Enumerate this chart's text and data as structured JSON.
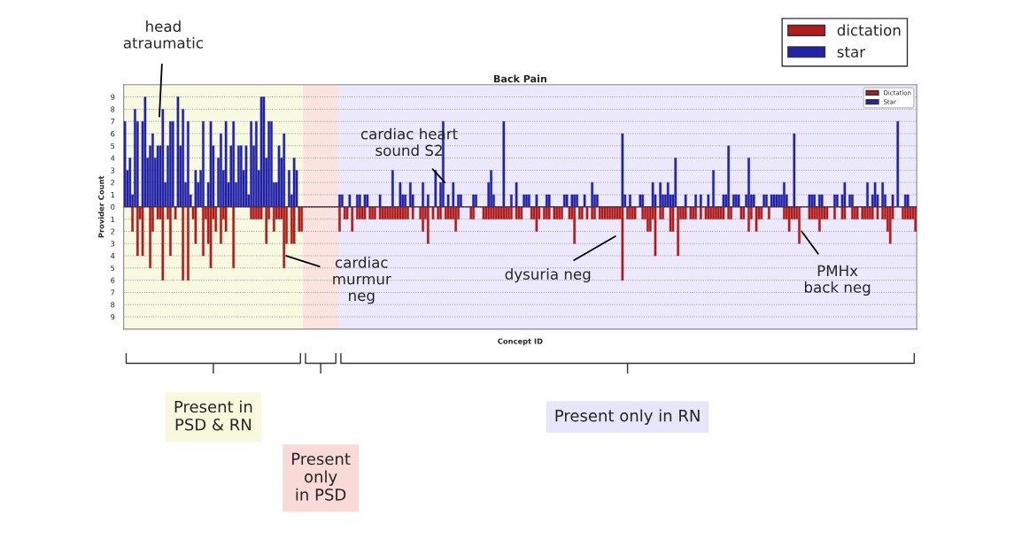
{
  "chart_data": {
    "type": "bar",
    "title": "Back Pain",
    "xlabel": "Concept ID",
    "ylabel": "Provider Count",
    "categories": [
      null,
      null,
      null,
      null,
      null,
      null,
      null,
      null,
      null,
      null,
      null,
      null,
      null,
      null,
      null,
      null,
      null,
      null,
      null,
      null,
      null,
      null,
      null,
      null,
      null,
      null,
      null,
      null,
      null,
      null,
      null,
      null,
      null,
      null,
      null,
      null,
      null,
      null,
      null,
      null,
      null,
      null,
      null,
      null,
      null,
      null,
      null,
      null,
      null,
      null,
      null,
      null,
      null,
      null,
      null,
      null,
      null,
      null,
      null,
      null,
      null,
      null,
      null,
      null,
      null,
      null,
      null,
      null,
      null,
      null,
      null,
      null,
      null,
      null,
      null,
      null,
      null,
      null,
      null,
      null,
      null,
      null,
      null,
      null,
      null,
      null,
      null,
      null,
      null,
      null,
      null,
      null,
      null,
      null,
      null,
      null,
      null,
      null,
      null,
      null,
      null,
      null,
      null,
      null,
      null,
      null,
      null,
      null,
      null,
      null,
      null,
      null,
      null,
      null,
      null,
      null,
      null,
      null,
      null,
      null,
      null,
      null,
      null,
      null,
      null,
      null,
      null,
      null,
      null,
      null,
      null,
      null,
      null,
      null,
      null,
      null,
      null,
      null,
      null,
      null,
      null,
      null,
      null,
      null,
      null,
      null,
      null,
      null,
      null,
      null,
      null,
      null,
      null,
      null,
      null,
      null,
      null,
      null,
      null,
      null,
      null,
      null,
      null,
      null,
      null,
      null,
      null,
      null,
      null,
      null,
      null,
      null,
      null,
      null,
      null,
      null,
      null,
      null,
      null,
      null,
      null,
      null,
      null,
      null,
      null,
      null,
      null,
      null,
      null,
      null,
      null,
      null,
      null,
      null,
      null,
      null,
      null,
      null,
      null,
      null,
      null,
      null,
      null,
      null,
      null,
      null,
      null,
      null,
      null,
      null,
      null,
      null,
      null,
      null,
      null,
      null,
      null,
      null,
      null,
      null,
      null,
      null,
      null,
      null,
      null,
      null,
      null,
      null,
      null,
      null,
      null,
      null,
      null,
      null,
      null,
      null,
      null,
      null,
      null,
      null,
      null,
      null,
      null,
      null,
      null,
      null,
      null,
      null,
      null,
      null,
      null,
      null,
      null,
      null,
      null,
      null,
      null,
      null,
      null,
      null,
      null,
      null,
      null,
      null,
      null,
      null,
      null,
      null,
      null,
      null,
      null,
      null,
      null,
      null,
      null,
      null,
      null,
      null,
      null,
      null,
      null,
      null,
      null,
      null,
      null,
      null,
      null,
      null,
      null,
      null,
      null,
      null,
      null,
      null,
      null,
      null,
      null,
      null,
      null,
      null,
      null,
      null,
      null,
      null,
      null,
      null,
      null,
      null,
      null,
      null,
      null,
      null,
      null,
      null
    ],
    "series": [
      {
        "name": "Dictation",
        "color": "#b01c1c",
        "values": [
          0,
          0,
          0,
          -2,
          0,
          -4,
          -1,
          -4,
          0,
          0,
          -5,
          -2,
          0,
          -1,
          -1,
          -6,
          0,
          -1,
          -4,
          0,
          -1,
          0,
          0,
          -6,
          0,
          -6,
          0,
          -1,
          -3,
          0,
          0,
          -4,
          -1,
          -3,
          -5,
          -1,
          -2,
          0,
          -3,
          -1,
          -2,
          0,
          0,
          -5,
          0,
          0,
          0,
          0,
          0,
          0,
          -1,
          -1,
          -1,
          -1,
          -1,
          0,
          -3,
          -1,
          0,
          -2,
          -1,
          -1,
          -1,
          -5,
          -3,
          0,
          -3,
          -3,
          0,
          -2,
          -2,
          0,
          0,
          0,
          0,
          0,
          0,
          0,
          0,
          0,
          0,
          0,
          0,
          0,
          0,
          -2,
          0,
          -1,
          -1,
          0,
          -2,
          0,
          -1,
          -1,
          -1,
          -1,
          0,
          -1,
          -1,
          -1,
          0,
          -1,
          -1,
          -1,
          -1,
          -1,
          -1,
          -1,
          -1,
          -1,
          -1,
          -1,
          -1,
          0,
          -1,
          0,
          0,
          -1,
          -2,
          -1,
          -3,
          0,
          -1,
          0,
          -1,
          -1,
          0,
          -1,
          -1,
          -1,
          -1,
          -2,
          -1,
          0,
          0,
          0,
          0,
          -1,
          -1,
          0,
          0,
          0,
          -1,
          -1,
          -1,
          -1,
          -1,
          -1,
          -1,
          -1,
          -1,
          -1,
          -1,
          -1,
          0,
          -1,
          -1,
          -1,
          0,
          0,
          0,
          -1,
          -1,
          -2,
          -1,
          0,
          -1,
          -1,
          -1,
          0,
          -1,
          -1,
          -1,
          -1,
          0,
          0,
          -1,
          -1,
          -3,
          0,
          -1,
          -1,
          0,
          -1,
          0,
          -1,
          -1,
          0,
          -1,
          -1,
          -1,
          -1,
          -1,
          -1,
          -1,
          -1,
          -1,
          -6,
          0,
          -1,
          -1,
          -1,
          -1,
          0,
          0,
          -1,
          -1,
          -2,
          -2,
          -1,
          -4,
          0,
          -1,
          -1,
          0,
          0,
          -2,
          -2,
          0,
          -4,
          -1,
          -1,
          -1,
          0,
          -1,
          -1,
          -1,
          0,
          -1,
          0,
          -1,
          -1,
          -1,
          -1,
          -1,
          -1,
          -1,
          -1,
          0,
          -1,
          -1,
          0,
          0,
          0,
          -1,
          -1,
          0,
          -2,
          -1,
          0,
          -2,
          -1,
          -1,
          0,
          0,
          -1,
          0,
          0,
          0,
          0,
          0,
          -1,
          -1,
          -2,
          -1,
          -1,
          -1,
          -3,
          0,
          0,
          0,
          -1,
          -1,
          -1,
          -1,
          -2,
          -1,
          -1,
          -1,
          0,
          0,
          -1,
          0,
          0,
          -1,
          -1,
          0,
          0,
          -1,
          -1,
          -1,
          0,
          -1,
          -1,
          -1,
          -1,
          -1,
          0,
          -1,
          0,
          -1,
          -1,
          -2,
          -3,
          -1,
          0,
          0,
          0,
          -1,
          -1,
          -1,
          -1,
          -1,
          -2
        ]
      },
      {
        "name": "Star",
        "color": "#2323a8",
        "values": [
          7,
          3,
          4,
          1,
          8,
          7,
          0,
          7,
          9,
          4,
          5,
          6,
          4,
          5,
          5,
          8,
          2,
          5,
          7,
          7,
          0,
          9,
          5,
          8,
          2,
          7,
          1,
          0,
          3,
          2,
          3,
          7,
          0,
          2,
          7,
          5,
          0,
          4,
          6,
          3,
          7,
          2,
          5,
          7,
          2,
          5,
          5,
          3,
          5,
          1,
          7,
          5,
          7,
          3,
          9,
          9,
          4,
          7,
          7,
          2,
          2,
          5,
          4,
          6,
          0,
          3,
          1,
          4,
          3,
          0,
          0,
          0,
          0,
          0,
          0,
          0,
          0,
          0,
          0,
          0,
          0,
          0,
          0,
          0,
          0,
          1,
          1,
          0,
          0,
          1,
          0,
          0,
          1,
          1,
          0,
          1,
          1,
          0,
          0,
          0,
          0,
          1,
          0,
          0,
          0,
          0,
          3,
          0,
          0,
          2,
          1,
          1,
          0,
          2,
          1,
          0,
          0,
          0,
          2,
          0,
          1,
          0,
          0,
          3,
          0,
          2,
          7,
          0,
          1,
          0,
          2,
          0,
          1,
          1,
          0,
          0,
          0,
          0,
          1,
          1,
          0,
          0,
          0,
          0,
          2,
          3,
          1,
          0,
          0,
          0,
          7,
          0,
          0,
          1,
          0,
          2,
          0,
          0,
          1,
          1,
          1,
          0,
          0,
          1,
          0,
          0,
          0,
          1,
          1,
          0,
          0,
          0,
          0,
          0,
          1,
          1,
          0,
          1,
          1,
          1,
          0,
          0,
          1,
          0,
          0,
          2,
          1,
          1,
          0,
          0,
          0,
          0,
          0,
          0,
          0,
          0,
          0,
          6,
          1,
          0,
          1,
          0,
          0,
          0,
          1,
          1,
          0,
          0,
          0,
          2,
          1,
          0,
          2,
          1,
          1,
          2,
          1,
          1,
          4,
          0,
          0,
          0,
          1,
          0,
          0,
          0,
          1,
          0,
          1,
          0,
          0,
          1,
          0,
          3,
          0,
          0,
          0,
          1,
          1,
          5,
          0,
          1,
          1,
          1,
          0,
          0,
          1,
          4,
          1,
          1,
          0,
          0,
          0,
          1,
          1,
          0,
          1,
          1,
          1,
          1,
          1,
          2,
          1,
          0,
          0,
          6,
          0,
          0,
          0,
          0,
          0,
          1,
          1,
          1,
          0,
          1,
          1,
          0,
          0,
          0,
          0,
          1,
          1,
          0,
          1,
          2,
          0,
          1,
          1,
          0,
          0,
          0,
          0,
          0,
          2,
          0,
          1,
          2,
          1,
          0,
          2,
          1,
          0,
          0,
          1,
          0,
          7,
          0,
          0,
          1,
          1,
          0,
          0,
          0
        ]
      }
    ],
    "ylim": [
      -10,
      10
    ],
    "yticks": [
      {
        "value": -9,
        "label": "9"
      },
      {
        "value": -8,
        "label": "8"
      },
      {
        "value": -7,
        "label": "7"
      },
      {
        "value": -6,
        "label": "6"
      },
      {
        "value": -5,
        "label": "5"
      },
      {
        "value": -4,
        "label": "4"
      },
      {
        "value": -3,
        "label": "3"
      },
      {
        "value": -2,
        "label": "2"
      },
      {
        "value": -1,
        "label": "1"
      },
      0,
      1,
      2,
      3,
      4,
      5,
      6,
      7,
      8,
      9
    ],
    "annotations": [
      "head\natraumatic",
      "cardiac heart\nsound S2",
      "cardiac\nmurmur\nneg",
      "dysuria neg",
      "PMHx\nback neg",
      "dictation",
      "star",
      "Present in\nPSD & RN",
      "Present\nonly\nin PSD",
      "Present only in RN"
    ],
    "grid": "y",
    "legend": "top right"
  }
}
